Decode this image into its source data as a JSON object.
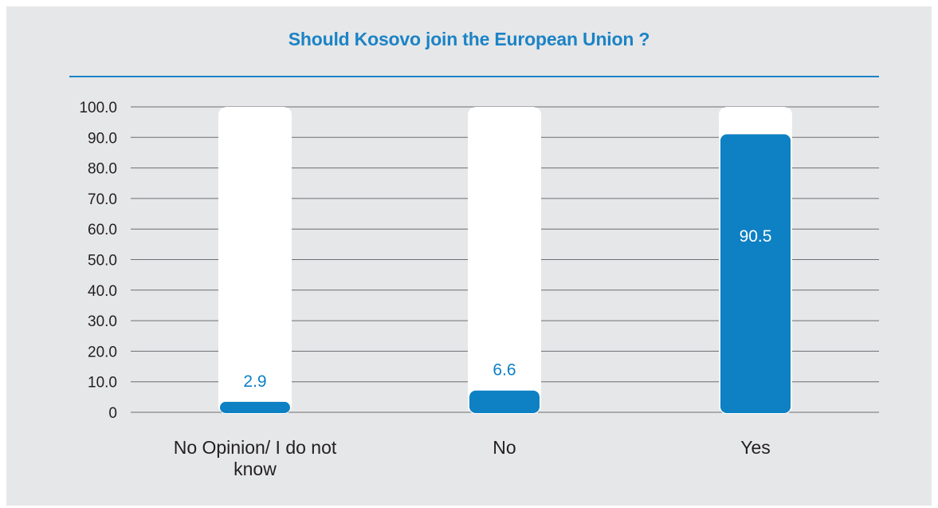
{
  "chart_data": {
    "type": "bar",
    "title": "Should Kosovo join the European Union ?",
    "categories": [
      "No Opinion/ I do not know",
      "No",
      "Yes"
    ],
    "values": [
      2.9,
      6.6,
      90.5
    ],
    "value_labels": [
      "2.9",
      "6.6",
      "90.5"
    ],
    "ylim": [
      0,
      100
    ],
    "y_ticks": [
      0,
      10,
      20,
      30,
      40,
      50,
      60,
      70,
      80,
      90,
      100
    ],
    "y_tick_labels": [
      "0",
      "10.0",
      "20.0",
      "30.0",
      "40.0",
      "50.0",
      "60.0",
      "70.0",
      "80.0",
      "90.0",
      "100.0"
    ],
    "xlabel": "",
    "ylabel": "",
    "grid": true,
    "legend": false,
    "bar_color": "#0e80c4",
    "bar_background_color": "#ffffff",
    "title_color": "#1c83c6",
    "panel_background": "#e6e7e8"
  }
}
